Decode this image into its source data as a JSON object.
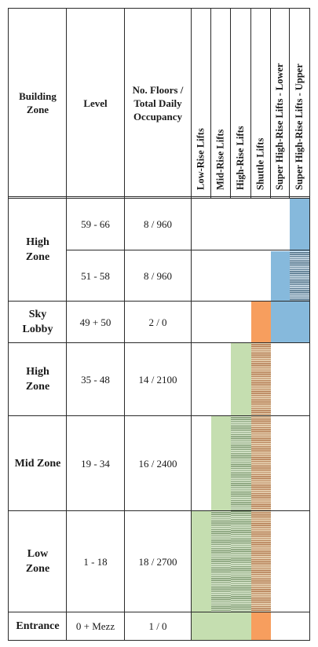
{
  "header": {
    "building_zone": "Building Zone",
    "level": "Level",
    "occupancy": "No. Floors / Total Daily Occupancy",
    "lifts": [
      "Low-Rise Lifts",
      "Mid-Rise Lifts",
      "High-Rise Lifts",
      "Shuttle Lifts",
      "Super High-Rise Lifts - Lower",
      "Super High-Rise Lifts - Upper"
    ]
  },
  "zones": [
    {
      "name": "High Zone"
    },
    {
      "name": "Sky Lobby"
    },
    {
      "name": "High Zone"
    },
    {
      "name": "Mid Zone"
    },
    {
      "name": "Low Zone"
    },
    {
      "name": "Entrance"
    }
  ],
  "rows": [
    {
      "level": "59 - 66",
      "floors_occupancy": "8 / 960"
    },
    {
      "level": "51 - 58",
      "floors_occupancy": "8 / 960"
    },
    {
      "level": "49 + 50",
      "floors_occupancy": "2 / 0"
    },
    {
      "level": "35 - 48",
      "floors_occupancy": "14 / 2100"
    },
    {
      "level": "19 - 34",
      "floors_occupancy": "16 / 2400"
    },
    {
      "level": "1 - 18",
      "floors_occupancy": "18 / 2700"
    },
    {
      "level": "0 + Mezz",
      "floors_occupancy": "1 / 0"
    }
  ],
  "lift_colors": {
    "low_rise": "#c5deb0",
    "mid_rise": "#c5deb0",
    "high_rise": "#c5deb0",
    "shuttle": "#f79e5e",
    "super_lower": "#86b9dc",
    "super_upper": "#86b9dc"
  }
}
